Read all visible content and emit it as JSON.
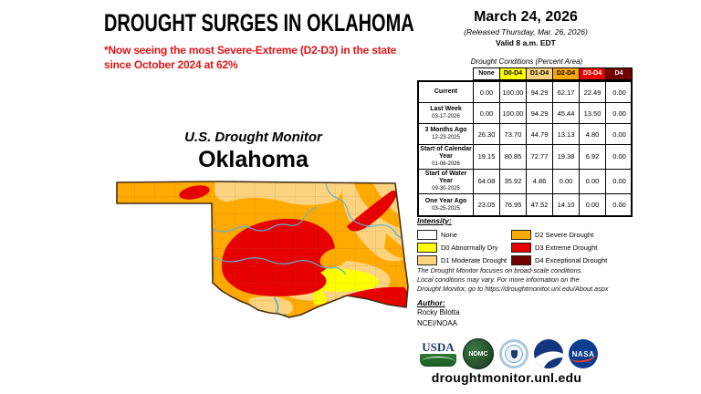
{
  "colors": {
    "none": "#FFFFFF",
    "d0": "#FFFF00",
    "d1": "#FCD37F",
    "d2": "#FFAA00",
    "d3": "#E60000",
    "d4": "#730000",
    "river": "#62AEDC",
    "outline": "#453012",
    "county": "#8a6a38",
    "accent_red": "#E01418"
  },
  "header": {
    "title": "DROUGHT SURGES IN OKLAHOMA",
    "subtitle_lines": [
      "*Now seeing the most Severe-Extreme (D2-D3) in the state",
      "since October 2024 at 62%"
    ]
  },
  "date_block": {
    "date": "March 24, 2026",
    "released": "(Released Thursday, Mar. 26, 2026)",
    "valid": "Valid 8 a.m. EDT"
  },
  "map": {
    "supertitle": "U.S. Drought Monitor",
    "title": "Oklahoma"
  },
  "table": {
    "title": "Drought Conditions (Percent Area)",
    "columns": [
      {
        "label": "None",
        "bg": "#FFFFFF",
        "fg": "#000000"
      },
      {
        "label": "D0-D4",
        "bg": "#FFFF00",
        "fg": "#000000"
      },
      {
        "label": "D1-D4",
        "bg": "#FCD37F",
        "fg": "#000000"
      },
      {
        "label": "D2-D4",
        "bg": "#FFAA00",
        "fg": "#000000"
      },
      {
        "label": "D3-D4",
        "bg": "#E60000",
        "fg": "#FFFFFF"
      },
      {
        "label": "D4",
        "bg": "#730000",
        "fg": "#FFFFFF"
      }
    ],
    "rows": [
      {
        "label": "Current",
        "date": "",
        "values": [
          "0.00",
          "100.00",
          "94.29",
          "62.17",
          "22.49",
          "0.00"
        ]
      },
      {
        "label": "Last Week",
        "date": "03-17-2026",
        "values": [
          "0.00",
          "100.00",
          "94.29",
          "45.44",
          "13.50",
          "0.00"
        ]
      },
      {
        "label": "3 Months Ago",
        "date": "12-23-2025",
        "values": [
          "26.30",
          "73.70",
          "44.79",
          "13.13",
          "4.80",
          "0.00"
        ]
      },
      {
        "label": "Start of Calendar Year",
        "date": "01-06-2026",
        "values": [
          "19.15",
          "80.85",
          "72.77",
          "19.38",
          "6.92",
          "0.00"
        ]
      },
      {
        "label": "Start of Water Year",
        "date": "09-30-2025",
        "values": [
          "64.08",
          "35.92",
          "4.86",
          "0.00",
          "0.00",
          "0.00"
        ]
      },
      {
        "label": "One Year Ago",
        "date": "03-25-2025",
        "values": [
          "23.05",
          "76.95",
          "47.52",
          "14.10",
          "0.00",
          "0.00"
        ]
      }
    ]
  },
  "legend": {
    "title": "Intensity:",
    "items": [
      {
        "label": "None",
        "color": "#FFFFFF"
      },
      {
        "label": "D0 Abnormally Dry",
        "color": "#FFFF00"
      },
      {
        "label": "D1 Moderate Drought",
        "color": "#FCD37F"
      },
      {
        "label": "D2 Severe Drought",
        "color": "#FFAA00"
      },
      {
        "label": "D3 Extreme Drought",
        "color": "#E60000"
      },
      {
        "label": "D4 Exceptional Drought",
        "color": "#730000"
      }
    ]
  },
  "notes": {
    "lines": [
      "The Drought Monitor focuses on broad-scale conditions.",
      "Local conditions may vary. For more information on the",
      "Drought Monitor, go to https://droughtmonitor.unl.edu/About.aspx"
    ]
  },
  "author": {
    "heading": "Author:",
    "name": "Rocky Bilotta",
    "org": "NCEI/NOAA"
  },
  "footer": {
    "url": "droughtmonitor.unl.edu",
    "usda_text": "USDA",
    "ndmc_text": "NDMC",
    "nasa_text": "NASA",
    "logos": [
      "usda-logo",
      "ndmc-logo",
      "doc-seal-logo",
      "noaa-logo",
      "nasa-logo"
    ]
  }
}
